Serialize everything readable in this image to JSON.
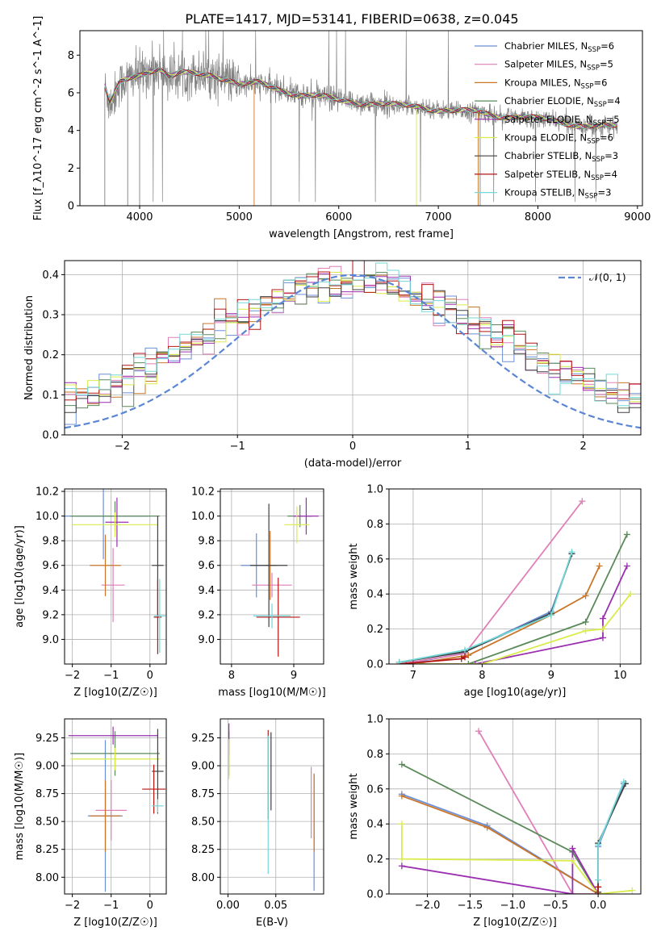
{
  "figure": {
    "title": "PLATE=1417, MJD=53141, FIBERID=0638, z=0.045"
  },
  "colors": {
    "models": [
      "#6b8fd8",
      "#e07fb8",
      "#c9762a",
      "#5a8a5a",
      "#9a2fb0",
      "#d9ec4a",
      "#404040",
      "#b51515",
      "#72d8d8"
    ],
    "data": "#808080",
    "gaussian": "#5b86d4",
    "grid": "#b0b0b0"
  },
  "legend_models": [
    {
      "label": "Chabrier MILES, N",
      "sub": "SSP",
      "suffix": "=6"
    },
    {
      "label": "Salpeter MILES, N",
      "sub": "SSP",
      "suffix": "=5"
    },
    {
      "label": "Kroupa MILES, N",
      "sub": "SSP",
      "suffix": "=6"
    },
    {
      "label": "Chabrier ELODIE, N",
      "sub": "SSP",
      "suffix": "=4"
    },
    {
      "label": "Salpeter ELODIE, N",
      "sub": "SSP",
      "suffix": "=5"
    },
    {
      "label": "Kroupa ELODIE, N",
      "sub": "SSP",
      "suffix": "=6"
    },
    {
      "label": "Chabrier STELIB, N",
      "sub": "SSP",
      "suffix": "=3"
    },
    {
      "label": "Salpeter STELIB, N",
      "sub": "SSP",
      "suffix": "=4"
    },
    {
      "label": "Kroupa STELIB, N",
      "sub": "SSP",
      "suffix": "=3"
    }
  ],
  "chart_data": [
    {
      "id": "spectrum",
      "type": "line",
      "xlabel": "wavelength [Angstrom, rest frame]",
      "ylabel": "Flux [f_λ10^-17 erg cm^-2 s^-1 A^-1]",
      "xlim": [
        3400,
        9050
      ],
      "ylim": [
        0,
        9.3
      ],
      "xticks": [
        4000,
        5000,
        6000,
        7000,
        8000,
        9000
      ],
      "yticks": [
        0,
        2,
        4,
        6,
        8
      ],
      "grid": false,
      "legend": "upper-right",
      "continuum_x": [
        3650,
        3700,
        3750,
        3800,
        3900,
        4000,
        4100,
        4200,
        4300,
        4400,
        4500,
        4700,
        4900,
        5000,
        5200,
        5400,
        5600,
        5800,
        6000,
        6200,
        6400,
        6600,
        6800,
        7000,
        7200,
        7400,
        7600,
        7800,
        8000,
        8200,
        8400,
        8600,
        8800
      ],
      "continuum_y": [
        6.3,
        5.4,
        5.9,
        6.5,
        6.8,
        7.0,
        7.2,
        7.3,
        6.8,
        7.0,
        7.0,
        7.0,
        6.7,
        6.4,
        6.5,
        6.2,
        5.9,
        5.8,
        5.6,
        5.5,
        5.4,
        5.3,
        5.3,
        5.1,
        5.0,
        5.0,
        4.8,
        4.7,
        4.6,
        4.5,
        4.3,
        4.2,
        4.2
      ]
    },
    {
      "id": "residuals",
      "type": "step",
      "xlabel": "(data-model)/error",
      "ylabel": "Normed distribution",
      "xlim": [
        -2.5,
        2.5
      ],
      "ylim": [
        0,
        0.435
      ],
      "xticks": [
        -2,
        -1,
        0,
        1,
        2
      ],
      "yticks": [
        0.0,
        0.1,
        0.2,
        0.3,
        0.4
      ],
      "grid": true,
      "legend": "upper-right",
      "gaussian_label": "𝒩(0, 1)",
      "bin_width": 0.1
    },
    {
      "id": "age_vs_z",
      "type": "errorbar",
      "xlabel": "Z [log10(Z/Z☉)]",
      "ylabel": "age  [log10(age/yr)]",
      "xlim": [
        -2.2,
        0.42
      ],
      "ylim": [
        8.8,
        10.22
      ],
      "xticks": [
        -2,
        -1,
        0
      ],
      "yticks": [
        9.0,
        9.2,
        9.4,
        9.6,
        9.8,
        10.0,
        10.2
      ],
      "grid": true,
      "points": [
        {
          "x": -1.2,
          "xerr": 1.15,
          "y": 10.0,
          "yerr": 0.35
        },
        {
          "x": -0.95,
          "xerr": 0.3,
          "y": 9.44,
          "yerr": 0.3
        },
        {
          "x": -1.15,
          "xerr": 0.4,
          "y": 9.6,
          "yerr": 0.25
        },
        {
          "x": -0.9,
          "xerr": 1.15,
          "y": 10.0,
          "yerr": 0.12
        },
        {
          "x": -0.85,
          "xerr": 0.3,
          "y": 9.95,
          "yerr": 0.2
        },
        {
          "x": -0.9,
          "xerr": 1.1,
          "y": 9.93,
          "yerr": 0.1
        },
        {
          "x": 0.2,
          "xerr": 0.15,
          "y": 9.6,
          "yerr": 0.4
        },
        {
          "x": 0.2,
          "xerr": 0.1,
          "y": 9.18,
          "yerr": 0.3
        },
        {
          "x": 0.25,
          "xerr": 0.15,
          "y": 9.19,
          "yerr": 0.3
        }
      ]
    },
    {
      "id": "age_vs_mass",
      "type": "errorbar",
      "xlabel": "mass [log10(M/M☉)]",
      "ylabel": "",
      "xlim": [
        7.82,
        9.48
      ],
      "ylim": [
        8.8,
        10.22
      ],
      "xticks": [
        8,
        9
      ],
      "yticks": [
        9.0,
        9.2,
        9.4,
        9.6,
        9.8,
        10.0,
        10.2
      ],
      "grid": true,
      "points": [
        {
          "x": 8.4,
          "xerr": 0.25,
          "y": 9.6,
          "yerr": 0.26
        },
        {
          "x": 8.65,
          "xerr": 0.32,
          "y": 9.44,
          "yerr": 0.1
        },
        {
          "x": 8.62,
          "xerr": 0.1,
          "y": 9.6,
          "yerr": 0.28
        },
        {
          "x": 9.1,
          "xerr": 0.2,
          "y": 10.0,
          "yerr": 0.09
        },
        {
          "x": 9.2,
          "xerr": 0.2,
          "y": 10.0,
          "yerr": 0.15
        },
        {
          "x": 9.05,
          "xerr": 0.2,
          "y": 9.93,
          "yerr": 0.15
        },
        {
          "x": 8.6,
          "xerr": 0.3,
          "y": 9.6,
          "yerr": 0.5
        },
        {
          "x": 8.75,
          "xerr": 0.35,
          "y": 9.18,
          "yerr": 0.32
        },
        {
          "x": 8.65,
          "xerr": 0.3,
          "y": 9.19,
          "yerr": 0.1
        }
      ]
    },
    {
      "id": "weight_vs_age",
      "type": "line",
      "xlabel": "age  [log10(age/yr)]",
      "ylabel": "mass weight",
      "xlim": [
        6.65,
        10.3
      ],
      "ylim": [
        0,
        1.0
      ],
      "xticks": [
        7,
        8,
        9,
        10
      ],
      "yticks": [
        0.0,
        0.2,
        0.4,
        0.6,
        0.8,
        1.0
      ],
      "grid": true,
      "series": [
        {
          "x": [
            6.9,
            7.7,
            9.0,
            9.3
          ],
          "y": [
            0.0,
            0.06,
            0.3,
            0.63
          ]
        },
        {
          "x": [
            6.8,
            7.75,
            9.45
          ],
          "y": [
            0.0,
            0.06,
            0.93
          ]
        },
        {
          "x": [
            7.0,
            7.8,
            9.0,
            9.5,
            9.7
          ],
          "y": [
            0.0,
            0.05,
            0.28,
            0.39,
            0.56
          ]
        },
        {
          "x": [
            7.0,
            7.8,
            9.5,
            10.1
          ],
          "y": [
            0.0,
            0.0,
            0.24,
            0.74
          ]
        },
        {
          "x": [
            7.0,
            7.9,
            9.75,
            9.75,
            10.1
          ],
          "y": [
            0.0,
            0.0,
            0.15,
            0.26,
            0.56
          ]
        },
        {
          "x": [
            6.8,
            8.0,
            9.5,
            9.75,
            10.15
          ],
          "y": [
            0.0,
            0.0,
            0.19,
            0.2,
            0.4
          ]
        },
        {
          "x": [
            6.8,
            7.75,
            9.0,
            9.3
          ],
          "y": [
            0.01,
            0.07,
            0.29,
            0.63
          ]
        },
        {
          "x": [
            6.8,
            7.7,
            7.75
          ],
          "y": [
            0.0,
            0.03,
            0.04
          ]
        },
        {
          "x": [
            6.8,
            7.75,
            9.0,
            9.3
          ],
          "y": [
            0.01,
            0.08,
            0.28,
            0.64
          ]
        }
      ]
    },
    {
      "id": "mass_vs_z",
      "type": "errorbar",
      "xlabel": "Z [log10(Z/Z☉)]",
      "ylabel": "mass [log10(M/M☉)]",
      "xlim": [
        -2.2,
        0.42
      ],
      "ylim": [
        7.85,
        9.42
      ],
      "xticks": [
        -2,
        -1,
        0
      ],
      "yticks": [
        8.0,
        8.25,
        8.5,
        8.75,
        9.0,
        9.25
      ],
      "grid": true,
      "points": [
        {
          "x": -1.15,
          "xerr": 0.45,
          "y": 8.55,
          "yerr": 0.68
        },
        {
          "x": -1.0,
          "xerr": 0.4,
          "y": 8.6,
          "yerr": 0.27
        },
        {
          "x": -1.15,
          "xerr": 0.4,
          "y": 8.55,
          "yerr": 0.32
        },
        {
          "x": -0.9,
          "xerr": 1.15,
          "y": 9.11,
          "yerr": 0.2
        },
        {
          "x": -0.95,
          "xerr": 1.15,
          "y": 9.27,
          "yerr": 0.08
        },
        {
          "x": -0.9,
          "xerr": 1.15,
          "y": 9.06,
          "yerr": 0.1
        },
        {
          "x": 0.2,
          "xerr": 0.15,
          "y": 8.95,
          "yerr": 0.38
        },
        {
          "x": 0.1,
          "xerr": 0.3,
          "y": 8.79,
          "yerr": 0.22
        },
        {
          "x": 0.2,
          "xerr": 0.15,
          "y": 8.64,
          "yerr": 0.06
        }
      ]
    },
    {
      "id": "mass_vs_ebv",
      "type": "errorbar",
      "xlabel": "E(B-V)",
      "ylabel": "",
      "xlim": [
        -0.008,
        0.1
      ],
      "ylim": [
        7.85,
        9.42
      ],
      "xticks": [
        0.0,
        0.05
      ],
      "yticks": [
        8.0,
        8.25,
        8.5,
        8.75,
        9.0,
        9.25
      ],
      "grid": true,
      "points": [
        {
          "x": 0.09,
          "y": 8.4,
          "yerr": 0.52
        },
        {
          "x": 0.087,
          "y": 8.67,
          "yerr": 0.32
        },
        {
          "x": 0.09,
          "y": 8.58,
          "yerr": 0.35
        },
        {
          "x": 0.001,
          "y": 9.11,
          "yerr": 0.2
        },
        {
          "x": 0.001,
          "y": 9.24,
          "yerr": 0.14
        },
        {
          "x": 0.001,
          "y": 9.06,
          "yerr": 0.18
        },
        {
          "x": 0.045,
          "y": 8.95,
          "yerr": 0.35
        },
        {
          "x": 0.042,
          "y": 8.92,
          "yerr": 0.4
        },
        {
          "x": 0.042,
          "y": 8.65,
          "yerr": 0.62
        }
      ]
    },
    {
      "id": "weight_vs_z",
      "type": "line",
      "xlabel": "Z [log10(Z/Z☉)]",
      "ylabel": "mass weight",
      "xlim": [
        -2.45,
        0.5
      ],
      "ylim": [
        0,
        1.0
      ],
      "xticks": [
        -2.0,
        -1.5,
        -1.0,
        -0.5,
        0.0
      ],
      "yticks": [
        0.0,
        0.2,
        0.4,
        0.6,
        0.8,
        1.0
      ],
      "grid": true,
      "series": [
        {
          "x": [
            -2.3,
            -1.3,
            0.0,
            0.0,
            0.3
          ],
          "y": [
            0.57,
            0.39,
            0.0,
            0.27,
            0.63
          ]
        },
        {
          "x": [
            -1.4,
            -0.3,
            0.0
          ],
          "y": [
            0.93,
            0.0,
            0.0
          ]
        },
        {
          "x": [
            -2.3,
            -1.3,
            0.0
          ],
          "y": [
            0.56,
            0.38,
            0.0
          ]
        },
        {
          "x": [
            -2.3,
            -0.3,
            0.0
          ],
          "y": [
            0.74,
            0.24,
            0.0
          ]
        },
        {
          "x": [
            -2.3,
            -0.3,
            -0.3,
            0.0
          ],
          "y": [
            0.16,
            0.0,
            0.26,
            0.0
          ]
        },
        {
          "x": [
            -2.3,
            -2.3,
            -0.3,
            0.0,
            0.4
          ],
          "y": [
            0.4,
            0.2,
            0.19,
            0.0,
            0.02
          ]
        },
        {
          "x": [
            0.0,
            0.0,
            0.32
          ],
          "y": [
            0.01,
            0.29,
            0.63
          ]
        },
        {
          "x": [
            0.0,
            0.0
          ],
          "y": [
            0.0,
            0.04
          ]
        },
        {
          "x": [
            0.0,
            0.0,
            0.3
          ],
          "y": [
            0.08,
            0.28,
            0.64
          ]
        }
      ]
    }
  ]
}
